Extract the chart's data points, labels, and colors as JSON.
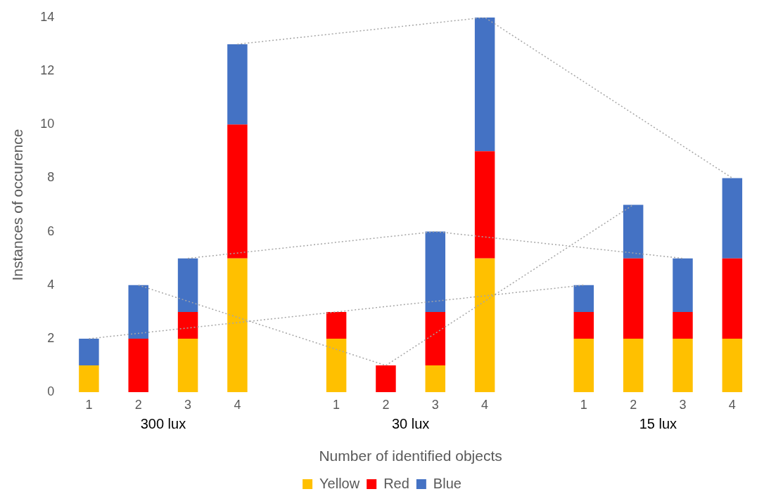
{
  "chart_data": {
    "type": "bar",
    "stacked": true,
    "xlabel": "Number of identified objects",
    "ylabel": "Instances of occurence",
    "categories": [
      "1",
      "2",
      "3",
      "4",
      null,
      "1",
      "2",
      "3",
      "4",
      null,
      "1",
      "2",
      "3",
      "4"
    ],
    "series": [
      {
        "name": "Yellow",
        "color": "#ffc000",
        "values": [
          1,
          0,
          2,
          5,
          null,
          2,
          0,
          1,
          5,
          null,
          2,
          2,
          2,
          2
        ]
      },
      {
        "name": "Red",
        "color": "#ff0000",
        "values": [
          0,
          2,
          1,
          5,
          null,
          1,
          1,
          2,
          4,
          null,
          1,
          3,
          1,
          3
        ]
      },
      {
        "name": "Blue",
        "color": "#4472c4",
        "values": [
          1,
          2,
          2,
          3,
          null,
          0,
          0,
          3,
          5,
          null,
          1,
          2,
          2,
          3
        ]
      },
      {
        "type": "line",
        "color": "#a6a6a6",
        "line_style": "dotted",
        "marker": "none",
        "values": [
          2,
          null,
          null,
          null,
          null,
          3,
          null,
          null,
          null,
          null,
          4,
          null,
          null,
          null
        ]
      },
      {
        "type": "line",
        "color": "#a6a6a6",
        "line_style": "dotted",
        "marker": "none",
        "values": [
          null,
          4,
          null,
          null,
          null,
          null,
          1,
          null,
          null,
          null,
          null,
          7,
          null,
          null
        ]
      },
      {
        "type": "line",
        "color": "#a6a6a6",
        "line_style": "dotted",
        "marker": "none",
        "values": [
          null,
          null,
          5,
          null,
          null,
          null,
          null,
          6,
          null,
          null,
          null,
          null,
          5,
          null
        ]
      },
      {
        "type": "line",
        "color": "#a6a6a6",
        "line_style": "dotted",
        "marker": "none",
        "values": [
          null,
          null,
          null,
          13,
          null,
          null,
          null,
          null,
          14,
          null,
          null,
          null,
          null,
          8
        ]
      }
    ],
    "ylim": [
      0,
      14
    ],
    "yticks": [
      0,
      2,
      4,
      6,
      8,
      10,
      12,
      14
    ],
    "grid": false,
    "legend": "bottom",
    "annotations": [
      "300 lux",
      "30 lux",
      "15 lux"
    ]
  }
}
